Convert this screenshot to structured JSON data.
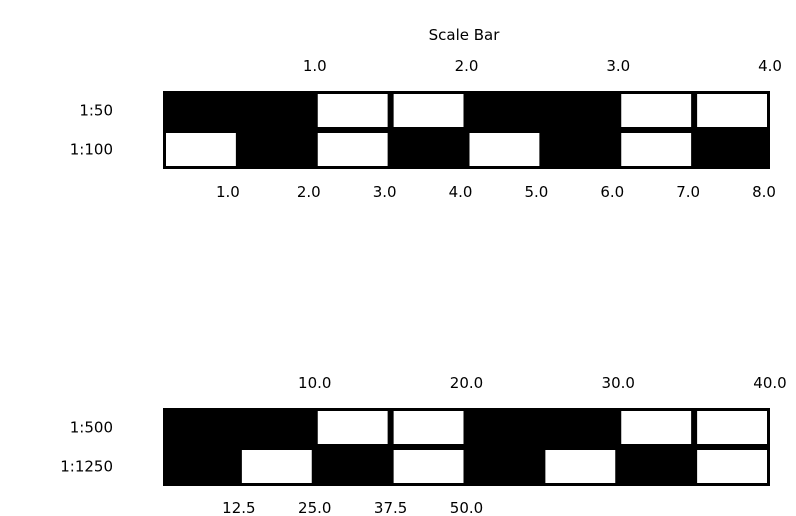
{
  "title": "Scale Bar",
  "colors": {
    "fill": "#000000",
    "empty": "#ffffff",
    "outline": "#000000"
  },
  "panels": [
    {
      "top_ticks": [
        "1.0",
        "2.0",
        "3.0",
        "4.0"
      ],
      "rows": [
        {
          "label": "1:50",
          "pattern": [
            1,
            1,
            0,
            0,
            1,
            1,
            0,
            0
          ]
        },
        {
          "label": "1:100",
          "pattern": [
            0,
            1,
            0,
            1,
            0,
            1,
            0,
            1
          ]
        }
      ],
      "bottom_ticks": [
        "1.0",
        "2.0",
        "3.0",
        "4.0",
        "5.0",
        "6.0",
        "7.0",
        "8.0"
      ]
    },
    {
      "top_ticks": [
        "10.0",
        "20.0",
        "30.0",
        "40.0"
      ],
      "rows": [
        {
          "label": "1:500",
          "pattern": [
            1,
            1,
            0,
            0,
            1,
            1,
            0,
            0
          ]
        },
        {
          "label": "1:1250",
          "pattern": [
            1,
            0,
            1,
            0,
            1,
            0,
            1,
            0
          ]
        }
      ],
      "bottom_ticks": [
        "12.5",
        "25.0",
        "37.5",
        "50.0"
      ]
    }
  ]
}
